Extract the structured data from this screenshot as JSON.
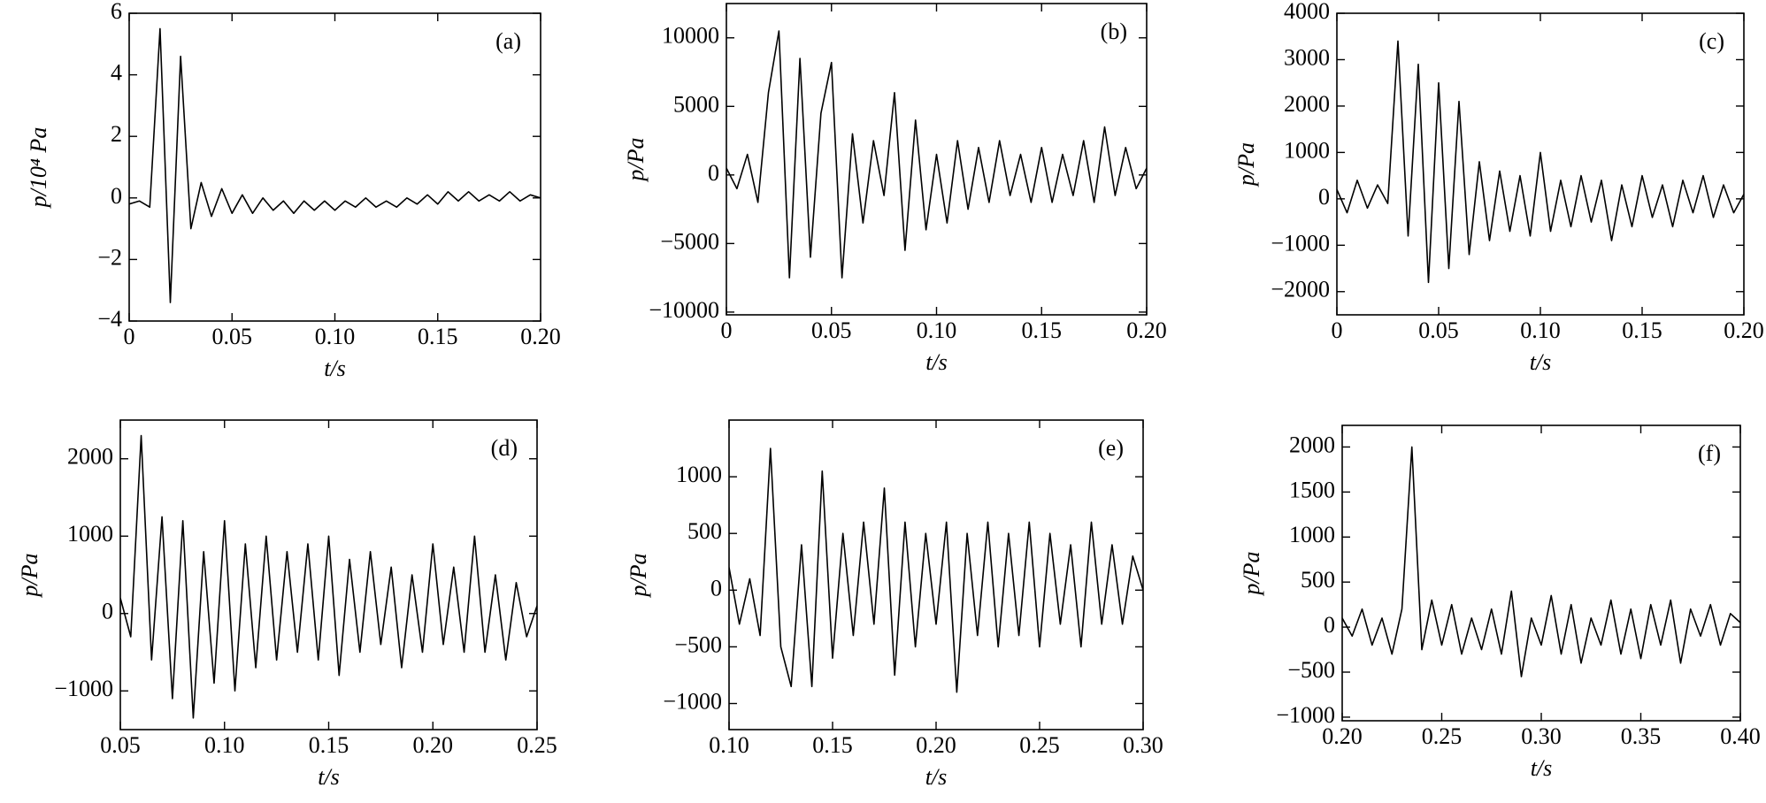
{
  "chart_data": [
    {
      "type": "line",
      "annotation": "(a)",
      "xlabel": "t/s",
      "ylabel": "p/10⁴ Pa",
      "color": "#000000",
      "x": [
        0,
        0.005,
        0.01,
        0.015,
        0.02,
        0.025,
        0.03,
        0.035,
        0.04,
        0.045,
        0.05,
        0.055,
        0.06,
        0.065,
        0.07,
        0.075,
        0.08,
        0.085,
        0.09,
        0.095,
        0.1,
        0.105,
        0.11,
        0.115,
        0.12,
        0.125,
        0.13,
        0.135,
        0.14,
        0.145,
        0.15,
        0.155,
        0.16,
        0.165,
        0.17,
        0.175,
        0.18,
        0.185,
        0.19,
        0.195,
        0.2
      ],
      "values": [
        -0.2,
        -0.1,
        -0.3,
        5.5,
        -3.4,
        4.6,
        -1.0,
        0.5,
        -0.6,
        0.3,
        -0.5,
        0.1,
        -0.5,
        0,
        -0.4,
        -0.1,
        -0.5,
        -0.1,
        -0.4,
        -0.1,
        -0.4,
        -0.1,
        -0.3,
        0,
        -0.3,
        -0.1,
        -0.3,
        0,
        -0.2,
        0.1,
        -0.2,
        0.2,
        -0.1,
        0.2,
        -0.1,
        0.1,
        -0.1,
        0.2,
        -0.1,
        0.1,
        0
      ],
      "xlim": [
        0,
        0.2
      ],
      "xticks": [
        0,
        0.05,
        {
          "value": 0.1,
          "label": "0.10"
        },
        0.15,
        {
          "value": 0.2,
          "label": "0.20"
        }
      ],
      "ylim": [
        -4,
        6
      ],
      "yticks": [
        {
          "value": -4,
          "label": "−4"
        },
        {
          "value": -2,
          "label": "−2"
        },
        0,
        2,
        4,
        6
      ]
    },
    {
      "type": "line",
      "annotation": "(b)",
      "xlabel": "t/s",
      "ylabel": "p/Pa",
      "color": "#000000",
      "x": [
        0,
        0.005,
        0.01,
        0.015,
        0.02,
        0.025,
        0.03,
        0.035,
        0.04,
        0.045,
        0.05,
        0.055,
        0.06,
        0.065,
        0.07,
        0.075,
        0.08,
        0.085,
        0.09,
        0.095,
        0.1,
        0.105,
        0.11,
        0.115,
        0.12,
        0.125,
        0.13,
        0.135,
        0.14,
        0.145,
        0.15,
        0.155,
        0.16,
        0.165,
        0.17,
        0.175,
        0.18,
        0.185,
        0.19,
        0.195,
        0.2
      ],
      "values": [
        500,
        -1000,
        1500,
        -2000,
        6000,
        10500,
        -7500,
        8500,
        -6000,
        4500,
        8200,
        -7500,
        3000,
        -3500,
        2500,
        -1500,
        6000,
        -5500,
        4000,
        -4000,
        1500,
        -3500,
        2500,
        -2500,
        2000,
        -2000,
        2500,
        -1500,
        1500,
        -2000,
        2000,
        -2000,
        1500,
        -1500,
        2500,
        -2000,
        3500,
        -1500,
        2000,
        -1000,
        500
      ],
      "xlim": [
        0,
        0.2
      ],
      "xticks": [
        0,
        0.05,
        {
          "value": 0.1,
          "label": "0.10"
        },
        0.15,
        {
          "value": 0.2,
          "label": "0.20"
        }
      ],
      "ylim": [
        -10200,
        12500
      ],
      "yticks": [
        {
          "value": -10000,
          "label": "−10000"
        },
        {
          "value": -5000,
          "label": "−5000"
        },
        0,
        5000,
        10000
      ]
    },
    {
      "type": "line",
      "annotation": "(c)",
      "xlabel": "t/s",
      "ylabel": "p/Pa",
      "color": "#000000",
      "x": [
        0,
        0.005,
        0.01,
        0.015,
        0.02,
        0.025,
        0.03,
        0.035,
        0.04,
        0.045,
        0.05,
        0.055,
        0.06,
        0.065,
        0.07,
        0.075,
        0.08,
        0.085,
        0.09,
        0.095,
        0.1,
        0.105,
        0.11,
        0.115,
        0.12,
        0.125,
        0.13,
        0.135,
        0.14,
        0.145,
        0.15,
        0.155,
        0.16,
        0.165,
        0.17,
        0.175,
        0.18,
        0.185,
        0.19,
        0.195,
        0.2
      ],
      "values": [
        200,
        -300,
        400,
        -200,
        300,
        -100,
        3400,
        -800,
        2900,
        -1800,
        2500,
        -1500,
        2100,
        -1200,
        800,
        -900,
        600,
        -700,
        500,
        -800,
        1000,
        -700,
        400,
        -600,
        500,
        -500,
        400,
        -900,
        300,
        -600,
        500,
        -400,
        300,
        -600,
        400,
        -300,
        500,
        -400,
        300,
        -300,
        100
      ],
      "xlim": [
        0,
        0.2
      ],
      "xticks": [
        0,
        0.05,
        {
          "value": 0.1,
          "label": "0.10"
        },
        0.15,
        {
          "value": 0.2,
          "label": "0.20"
        }
      ],
      "ylim": [
        -2500,
        4000
      ],
      "yticks": [
        {
          "value": -2000,
          "label": "−2000"
        },
        {
          "value": -1000,
          "label": "−1000"
        },
        0,
        1000,
        2000,
        3000,
        4000
      ]
    },
    {
      "type": "line",
      "annotation": "(d)",
      "xlabel": "t/s",
      "ylabel": "p/Pa",
      "color": "#000000",
      "x": [
        0.05,
        0.055,
        0.06,
        0.065,
        0.07,
        0.075,
        0.08,
        0.085,
        0.09,
        0.095,
        0.1,
        0.105,
        0.11,
        0.115,
        0.12,
        0.125,
        0.13,
        0.135,
        0.14,
        0.145,
        0.15,
        0.155,
        0.16,
        0.165,
        0.17,
        0.175,
        0.18,
        0.185,
        0.19,
        0.195,
        0.2,
        0.205,
        0.21,
        0.215,
        0.22,
        0.225,
        0.23,
        0.235,
        0.24,
        0.245,
        0.25
      ],
      "values": [
        200,
        -300,
        2300,
        -600,
        1250,
        -1100,
        1200,
        -1350,
        800,
        -900,
        1200,
        -1000,
        900,
        -700,
        1000,
        -600,
        800,
        -500,
        900,
        -600,
        1000,
        -800,
        700,
        -500,
        800,
        -400,
        600,
        -700,
        500,
        -500,
        900,
        -400,
        600,
        -500,
        1000,
        -500,
        500,
        -600,
        400,
        -300,
        100
      ],
      "xlim": [
        0.05,
        0.25
      ],
      "xticks": [
        0.05,
        {
          "value": 0.1,
          "label": "0.10"
        },
        0.15,
        {
          "value": 0.2,
          "label": "0.20"
        },
        0.25
      ],
      "ylim": [
        -1500,
        2500
      ],
      "yticks": [
        {
          "value": -1000,
          "label": "−1000"
        },
        0,
        1000,
        2000
      ]
    },
    {
      "type": "line",
      "annotation": "(e)",
      "xlabel": "t/s",
      "ylabel": "p/Pa",
      "color": "#000000",
      "x": [
        0.1,
        0.105,
        0.11,
        0.115,
        0.12,
        0.125,
        0.13,
        0.135,
        0.14,
        0.145,
        0.15,
        0.155,
        0.16,
        0.165,
        0.17,
        0.175,
        0.18,
        0.185,
        0.19,
        0.195,
        0.2,
        0.205,
        0.21,
        0.215,
        0.22,
        0.225,
        0.23,
        0.235,
        0.24,
        0.245,
        0.25,
        0.255,
        0.26,
        0.265,
        0.27,
        0.275,
        0.28,
        0.285,
        0.29,
        0.295,
        0.3
      ],
      "values": [
        200,
        -300,
        100,
        -400,
        1250,
        -500,
        -850,
        400,
        -850,
        1050,
        -600,
        500,
        -400,
        600,
        -300,
        900,
        -750,
        600,
        -500,
        500,
        -300,
        600,
        -900,
        500,
        -400,
        600,
        -500,
        500,
        -400,
        600,
        -500,
        500,
        -300,
        400,
        -500,
        600,
        -300,
        400,
        -300,
        300,
        0
      ],
      "xlim": [
        0.1,
        0.3
      ],
      "xticks": [
        {
          "value": 0.1,
          "label": "0.10"
        },
        0.15,
        {
          "value": 0.2,
          "label": "0.20"
        },
        0.25,
        {
          "value": 0.3,
          "label": "0.30"
        }
      ],
      "ylim": [
        -1230,
        1500
      ],
      "yticks": [
        {
          "value": -1000,
          "label": "−1000"
        },
        {
          "value": -500,
          "label": "−500"
        },
        0,
        500,
        1000
      ]
    },
    {
      "type": "line",
      "annotation": "(f)",
      "xlabel": "t/s",
      "ylabel": "p/Pa",
      "color": "#000000",
      "x": [
        0.2,
        0.205,
        0.21,
        0.215,
        0.22,
        0.225,
        0.23,
        0.235,
        0.24,
        0.245,
        0.25,
        0.255,
        0.26,
        0.265,
        0.27,
        0.275,
        0.28,
        0.285,
        0.29,
        0.295,
        0.3,
        0.305,
        0.31,
        0.315,
        0.32,
        0.325,
        0.33,
        0.335,
        0.34,
        0.345,
        0.35,
        0.355,
        0.36,
        0.365,
        0.37,
        0.375,
        0.38,
        0.385,
        0.39,
        0.395,
        0.4
      ],
      "values": [
        100,
        -100,
        200,
        -200,
        100,
        -300,
        200,
        2000,
        -250,
        300,
        -200,
        250,
        -300,
        100,
        -250,
        200,
        -300,
        400,
        -550,
        100,
        -200,
        350,
        -300,
        250,
        -400,
        100,
        -200,
        300,
        -300,
        200,
        -350,
        250,
        -200,
        300,
        -400,
        200,
        -100,
        250,
        -200,
        150,
        50
      ],
      "xlim": [
        0.2,
        0.4
      ],
      "xticks": [
        {
          "value": 0.2,
          "label": "0.20"
        },
        0.25,
        {
          "value": 0.3,
          "label": "0.30"
        },
        0.35,
        {
          "value": 0.4,
          "label": "0.40"
        }
      ],
      "ylim": [
        -1040,
        2240
      ],
      "yticks": [
        {
          "value": -1000,
          "label": "−1000"
        },
        {
          "value": -500,
          "label": "−500"
        },
        0,
        500,
        1000,
        1500,
        2000
      ]
    }
  ]
}
